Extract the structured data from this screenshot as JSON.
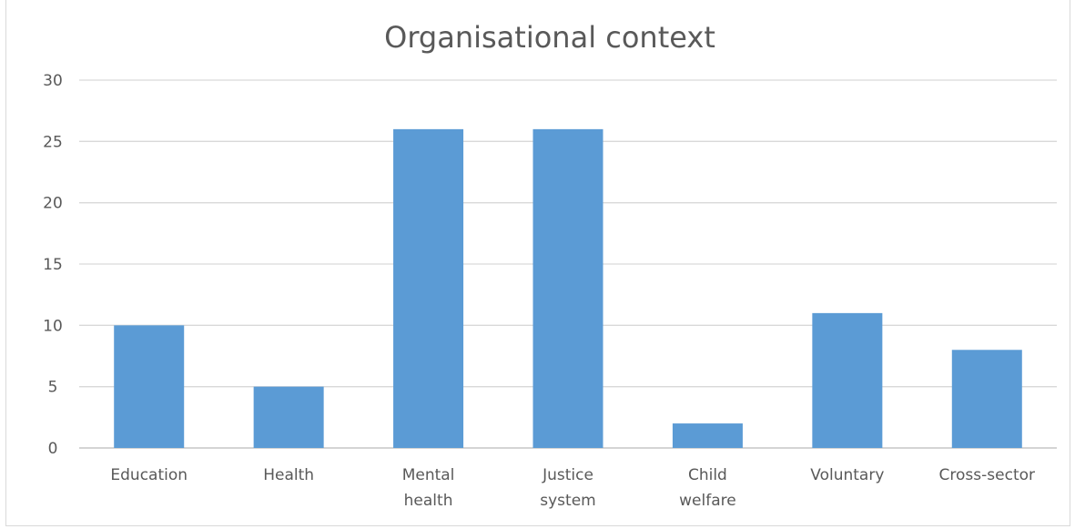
{
  "chart_data": {
    "type": "bar",
    "title": "Organisational context",
    "xlabel": "",
    "ylabel": "",
    "categories": [
      [
        "Education"
      ],
      [
        "Health"
      ],
      [
        "Mental",
        "health"
      ],
      [
        "Justice",
        "system"
      ],
      [
        "Child",
        "welfare"
      ],
      [
        "Voluntary"
      ],
      [
        "Cross-sector"
      ]
    ],
    "values": [
      10,
      5,
      26,
      26,
      2,
      11,
      8
    ],
    "ylim": [
      0,
      30
    ],
    "yticks": [
      0,
      5,
      10,
      15,
      20,
      25,
      30
    ],
    "grid": true,
    "legend": "none",
    "bar_color": "#5b9bd5",
    "grid_color": "#d9d9d9"
  }
}
